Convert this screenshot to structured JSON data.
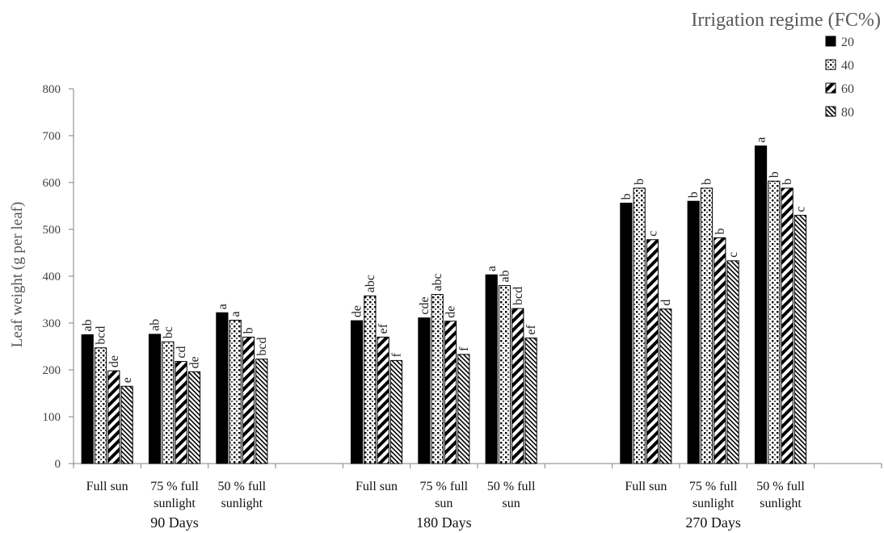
{
  "chart_data": {
    "type": "bar",
    "ylabel": "Leaf weight (g per leaf)",
    "ylim": [
      0,
      800
    ],
    "yticks": [
      0,
      100,
      200,
      300,
      400,
      500,
      600,
      700,
      800
    ],
    "legend": {
      "title": "Irrigation regime (FC%)",
      "position": "top-right",
      "entries": [
        "20",
        "40",
        "60",
        "80"
      ]
    },
    "groups": [
      {
        "label": "90 Days",
        "categories": [
          {
            "label": [
              "Full sun"
            ],
            "values": [
              275,
              247,
              198,
              165
            ],
            "letters": [
              "ab",
              "bcd",
              "de",
              "e"
            ]
          },
          {
            "label": [
              "75 % full",
              "sunlight"
            ],
            "values": [
              276,
              260,
              218,
              196
            ],
            "letters": [
              "ab",
              "bc",
              "cd",
              "de"
            ]
          },
          {
            "label": [
              "50 % full",
              "sunlight"
            ],
            "values": [
              322,
              306,
              270,
              223
            ],
            "letters": [
              "a",
              "a",
              "b",
              "bcd"
            ]
          }
        ]
      },
      {
        "label": "180  Days",
        "categories": [
          {
            "label": [
              "Full sun"
            ],
            "values": [
              305,
              358,
              270,
              220
            ],
            "letters": [
              "de",
              "abc",
              "ef",
              "f"
            ]
          },
          {
            "label": [
              "75 % full",
              "sun"
            ],
            "values": [
              311,
              361,
              304,
              233
            ],
            "letters": [
              "cde",
              "abc",
              "de",
              "f"
            ]
          },
          {
            "label": [
              "50 % full",
              "sun"
            ],
            "values": [
              403,
              380,
              331,
              268
            ],
            "letters": [
              "a",
              "ab",
              "bcd",
              "ef"
            ]
          }
        ]
      },
      {
        "label": "270 Days",
        "categories": [
          {
            "label": [
              "Full sun"
            ],
            "values": [
              556,
              588,
              478,
              330
            ],
            "letters": [
              "b",
              "b",
              "c",
              "d"
            ]
          },
          {
            "label": [
              "75 % full",
              "sunlight"
            ],
            "values": [
              560,
              588,
              482,
              433
            ],
            "letters": [
              "b",
              "b",
              "b",
              "c"
            ]
          },
          {
            "label": [
              "50 % full",
              "sunlight"
            ],
            "values": [
              678,
              603,
              588,
              530
            ],
            "letters": [
              "a",
              "b",
              "b",
              "c"
            ]
          }
        ]
      }
    ]
  }
}
